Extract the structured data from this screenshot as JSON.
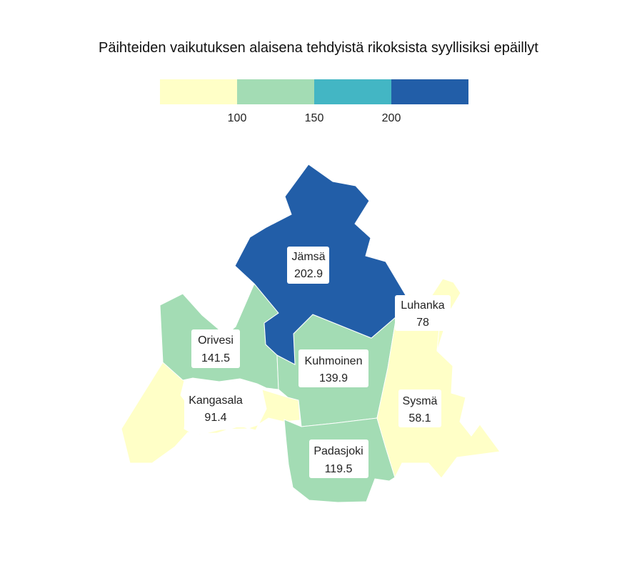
{
  "title": "Päihteiden vaikutuksen alaisena tehdyistä rikoksista syyllisiksi epäillyt",
  "legend": {
    "breaks": [
      "100",
      "150",
      "200"
    ],
    "colors": [
      "#ffffc7",
      "#a3dcb4",
      "#43b6c4",
      "#225ea8"
    ]
  },
  "chart_data": {
    "type": "choropleth",
    "title": "Päihteiden vaikutuksen alaisena tehdyistä rikoksista syyllisiksi epäillyt",
    "legend_breaks": [
      100,
      150,
      200
    ],
    "regions": [
      {
        "name": "Jämsä",
        "value": "202.9",
        "color": "#225ea8"
      },
      {
        "name": "Luhanka",
        "value": "78",
        "color": "#ffffc7"
      },
      {
        "name": "Orivesi",
        "value": "141.5",
        "color": "#a3dcb4"
      },
      {
        "name": "Kuhmoinen",
        "value": "139.9",
        "color": "#a3dcb4"
      },
      {
        "name": "Kangasala",
        "value": "91.4",
        "color": "#ffffc7"
      },
      {
        "name": "Sysmä",
        "value": "58.1",
        "color": "#ffffc7"
      },
      {
        "name": "Padasjoki",
        "value": "119.5",
        "color": "#a3dcb4"
      }
    ]
  }
}
